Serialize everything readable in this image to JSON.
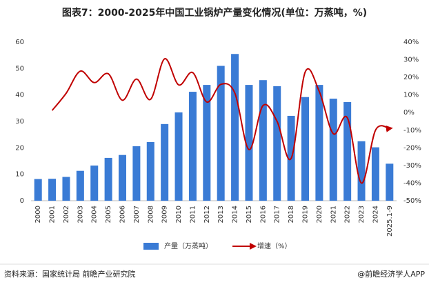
{
  "chart_data": {
    "type": "bar_line",
    "title": "图表7：2000-2025年中国工业锅炉产量变化情况(单位：万蒸吨，%)",
    "categories": [
      "2000",
      "2001",
      "2002",
      "2003",
      "2004",
      "2005",
      "2006",
      "2007",
      "2008",
      "2009",
      "2010",
      "2011",
      "2012",
      "2013",
      "2014",
      "2015",
      "2016",
      "2017",
      "2018",
      "2019",
      "2020",
      "2021",
      "2022",
      "2023",
      "2024",
      "2025.1-9"
    ],
    "series": [
      {
        "name": "产量（万蒸吨）",
        "color": "#3a7bd5",
        "type": "bar",
        "values": [
          8.2,
          8.3,
          9,
          11.3,
          13.3,
          16.2,
          17.3,
          20.6,
          22.2,
          29,
          33.4,
          41.2,
          43.8,
          51,
          55.5,
          43.8,
          45.6,
          43.3,
          32.1,
          39.2,
          43.8,
          38.6,
          37.3,
          22.5,
          20.2,
          14
        ]
      },
      {
        "name": "增速（%）",
        "color": "#c00000",
        "type": "line",
        "axis": "y2",
        "values": [
          null,
          1.2,
          11,
          23.5,
          17,
          22,
          7,
          19,
          7.5,
          30.5,
          15.7,
          22.7,
          6,
          16,
          11,
          -21,
          4,
          -5,
          -26,
          23,
          12,
          -12,
          -3,
          -40,
          -10,
          -9
        ]
      }
    ],
    "ylim": [
      0,
      60
    ],
    "yticks": [
      0,
      10,
      20,
      30,
      40,
      50,
      60
    ],
    "y2lim": [
      -50,
      40
    ],
    "y2ticks": [
      {
        "value": -50,
        "label": "-50%"
      },
      {
        "value": -40,
        "label": "-40%"
      },
      {
        "value": -30,
        "label": "-30%"
      },
      {
        "value": -20,
        "label": "-20%"
      },
      {
        "value": -10,
        "label": "-10%"
      },
      {
        "value": 0,
        "label": "0%"
      },
      {
        "value": 10,
        "label": "10%"
      },
      {
        "value": 20,
        "label": "20%"
      },
      {
        "value": 30,
        "label": "30%"
      },
      {
        "value": 40,
        "label": "40%"
      }
    ],
    "source": "资料来源：国家统计局 前瞻产业研究院",
    "brand": "@前瞻经济学人APP"
  }
}
